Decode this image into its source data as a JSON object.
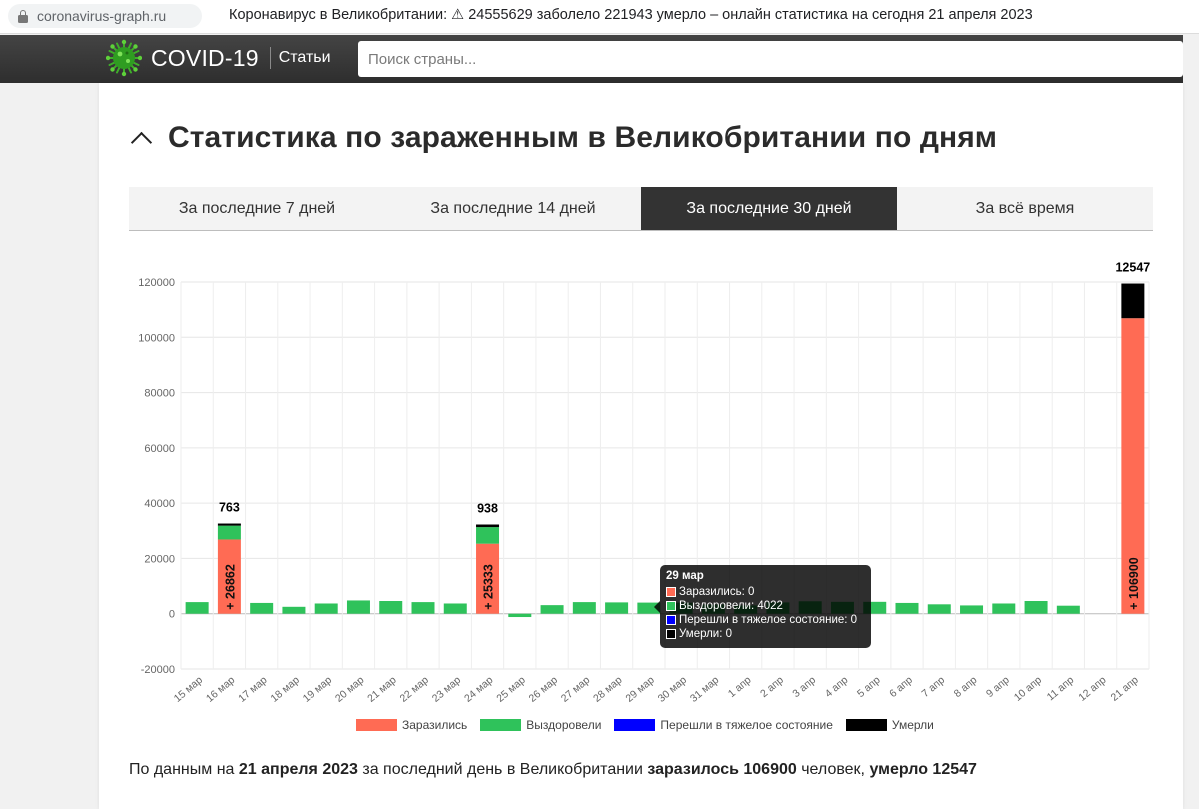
{
  "browser": {
    "url": "coronavirus-graph.ru",
    "tab_title": "Коронавирус в Великобритании: ⚠ 24555629 заболело 221943 умерло – онлайн статистика на сегодня 21 апреля 2023"
  },
  "header": {
    "logo": "COVID-19",
    "nav_articles": "Статьи",
    "search_placeholder": "Поиск страны..."
  },
  "section": {
    "title": "Статистика по зараженным в Великобритании по дням",
    "tabs": [
      {
        "label": "За последние 7 дней",
        "active": false
      },
      {
        "label": "За последние 14 дней",
        "active": false
      },
      {
        "label": "За последние 30 дней",
        "active": true
      },
      {
        "label": "За всё время",
        "active": false
      }
    ]
  },
  "colors": {
    "infected": "#ff6b54",
    "recovered": "#2fc25b",
    "critical": "#0000ff",
    "deaths": "#000000"
  },
  "chart_data": {
    "type": "bar",
    "stacked": true,
    "ylim": [
      -20000,
      120000
    ],
    "yticks": [
      -20000,
      0,
      20000,
      40000,
      60000,
      80000,
      100000,
      120000
    ],
    "categories": [
      "15 мар",
      "16 мар",
      "17 мар",
      "18 мар",
      "19 мар",
      "20 мар",
      "21 мар",
      "22 мар",
      "23 мар",
      "24 мар",
      "25 мар",
      "26 мар",
      "27 мар",
      "28 мар",
      "29 мар",
      "30 мар",
      "31 мар",
      "1 апр",
      "2 апр",
      "3 апр",
      "4 апр",
      "5 апр",
      "6 апр",
      "7 апр",
      "8 апр",
      "9 апр",
      "10 апр",
      "11 апр",
      "12 апр",
      "21 апр"
    ],
    "series": [
      {
        "name": "Заразились",
        "values": [
          0,
          26862,
          0,
          0,
          0,
          0,
          0,
          0,
          0,
          25333,
          0,
          0,
          0,
          0,
          0,
          0,
          0,
          0,
          0,
          0,
          0,
          0,
          0,
          0,
          0,
          0,
          0,
          0,
          0,
          106900
        ]
      },
      {
        "name": "Выздоровели",
        "values": [
          4200,
          5000,
          3900,
          2500,
          3700,
          4800,
          4600,
          4200,
          3700,
          6000,
          -1200,
          3100,
          4200,
          4100,
          4022,
          4000,
          3300,
          3000,
          4100,
          4500,
          4300,
          4300,
          3900,
          3400,
          3000,
          3700,
          4600,
          2900,
          0,
          0
        ]
      },
      {
        "name": "Перешли в тяжелое состояние",
        "values": [
          0,
          0,
          0,
          0,
          0,
          0,
          0,
          0,
          0,
          0,
          0,
          0,
          0,
          0,
          0,
          0,
          0,
          0,
          0,
          0,
          0,
          0,
          0,
          0,
          0,
          0,
          0,
          0,
          0,
          0
        ]
      },
      {
        "name": "Умерли",
        "values": [
          0,
          763,
          0,
          0,
          0,
          0,
          0,
          0,
          0,
          938,
          0,
          0,
          0,
          0,
          0,
          0,
          0,
          0,
          0,
          0,
          0,
          0,
          0,
          0,
          0,
          0,
          0,
          0,
          0,
          12547
        ]
      }
    ],
    "bar_labels": {
      "infected": [
        "",
        "+ 26862",
        "",
        "",
        "",
        "",
        "",
        "",
        "",
        "+ 25333",
        "",
        "",
        "",
        "",
        "",
        "",
        "",
        "",
        "",
        "",
        "",
        "",
        "",
        "",
        "",
        "",
        "",
        "",
        "",
        "+ 106900"
      ],
      "deaths": [
        "",
        "763",
        "",
        "",
        "",
        "",
        "",
        "",
        "",
        "938",
        "",
        "",
        "",
        "",
        "",
        "",
        "",
        "",
        "",
        "",
        "",
        "",
        "",
        "",
        "",
        "",
        "",
        "",
        "",
        "12547"
      ]
    },
    "legend": [
      {
        "label": "Заразились",
        "color": "#ff6b54"
      },
      {
        "label": "Выздоровели",
        "color": "#2fc25b"
      },
      {
        "label": "Перешли в тяжелое состояние",
        "color": "#0000ff"
      },
      {
        "label": "Умерли",
        "color": "#000000"
      }
    ],
    "legend_position": "bottom",
    "grid": true
  },
  "tooltip": {
    "date": "29 мар",
    "rows": [
      {
        "label": "Заразились: 0",
        "color": "#ff6b54"
      },
      {
        "label": "Выздоровели: 4022",
        "color": "#2fc25b"
      },
      {
        "label": "Перешли в тяжелое состояние: 0",
        "color": "#0000ff"
      },
      {
        "label": "Умерли: 0",
        "color": "#000000"
      }
    ]
  },
  "summary": {
    "prefix": "По данным на",
    "date": "21 апреля 2023",
    "middle": "за последний день в Великобритании",
    "infected": "заразилось 106900",
    "people_deaths_sep": "человек,",
    "deaths": "умерло 12547"
  }
}
